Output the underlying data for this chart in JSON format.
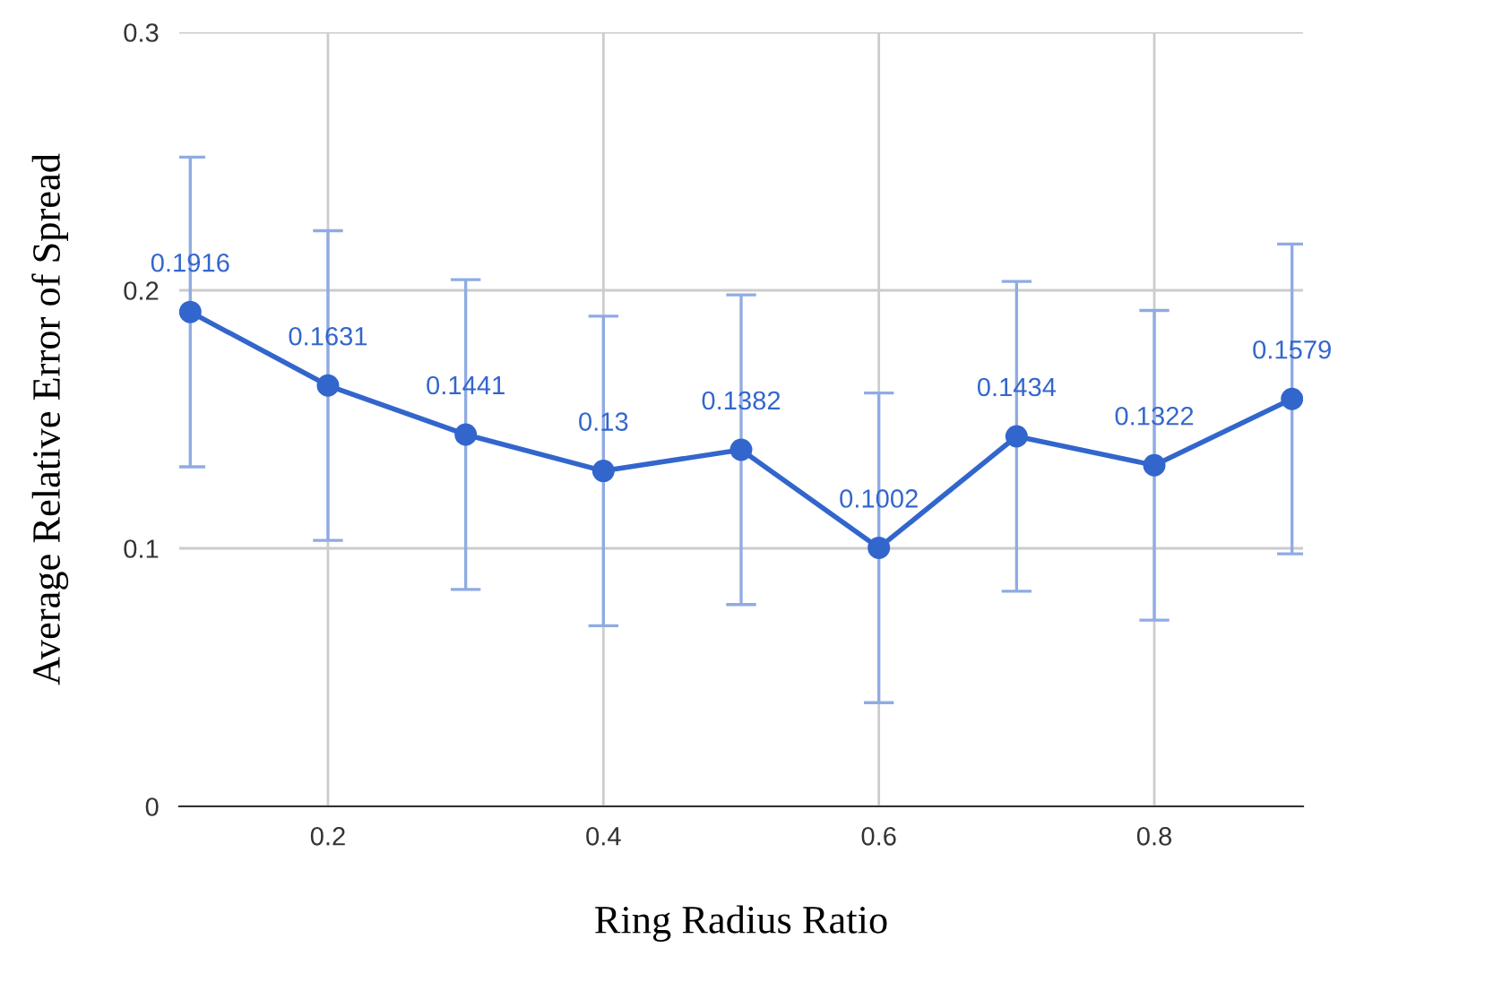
{
  "chart_data": {
    "type": "line",
    "xlabel": "Ring Radius Ratio",
    "ylabel": "Average Relative Error of Spread",
    "x": [
      0.1,
      0.2,
      0.3,
      0.4,
      0.5,
      0.6,
      0.7,
      0.8,
      0.9
    ],
    "series": [
      {
        "color": "#3366cc",
        "values": [
          0.1916,
          0.1631,
          0.1441,
          0.13,
          0.1382,
          0.1002,
          0.1434,
          0.1322,
          0.1579
        ],
        "errors": [
          0.06,
          0.06,
          0.06,
          0.06,
          0.06,
          0.06,
          0.06,
          0.06,
          0.06
        ]
      }
    ],
    "xlim": [
      0.092,
      0.908
    ],
    "ylim": [
      0,
      0.3
    ],
    "xticks": [
      0.2,
      0.4,
      0.6,
      0.8
    ],
    "yticks": [
      0,
      0.1,
      0.2,
      0.3
    ],
    "grid": true,
    "marker": "circle",
    "line_style": "solid",
    "data_labels": true
  }
}
